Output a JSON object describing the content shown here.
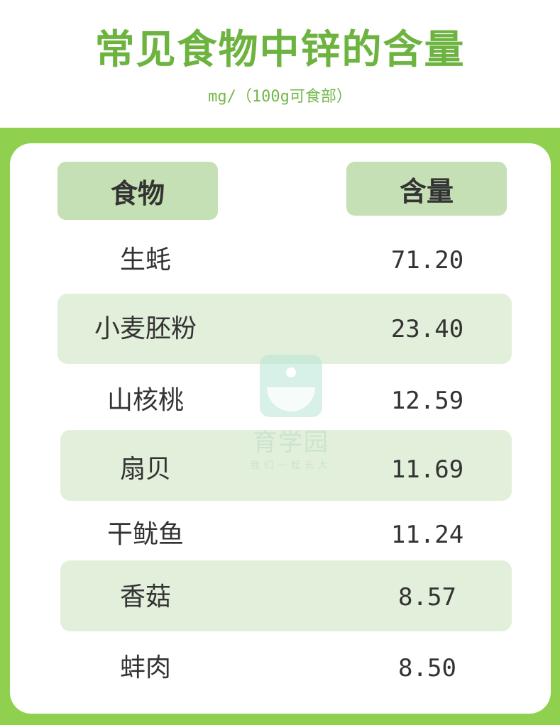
{
  "title": "常见食物中锌的含量",
  "subtitle": "mg/（100g可食部）",
  "colors": {
    "title": "#6db33f",
    "band": "#8fd14f",
    "header_pill": "#c5e0b4",
    "stripe": "#e2efda"
  },
  "table": {
    "headers": [
      "食物",
      "含量"
    ],
    "rows": [
      {
        "food": "生蚝",
        "value": "71.20"
      },
      {
        "food": "小麦胚粉",
        "value": "23.40"
      },
      {
        "food": "山核桃",
        "value": "12.59"
      },
      {
        "food": "扇贝",
        "value": "11.69"
      },
      {
        "food": "干鱿鱼",
        "value": "11.24"
      },
      {
        "food": "香菇",
        "value": "8.57"
      },
      {
        "food": "蚌肉",
        "value": "8.50"
      }
    ]
  },
  "watermark": {
    "name": "育学园",
    "slogan": "我们一起长大"
  }
}
